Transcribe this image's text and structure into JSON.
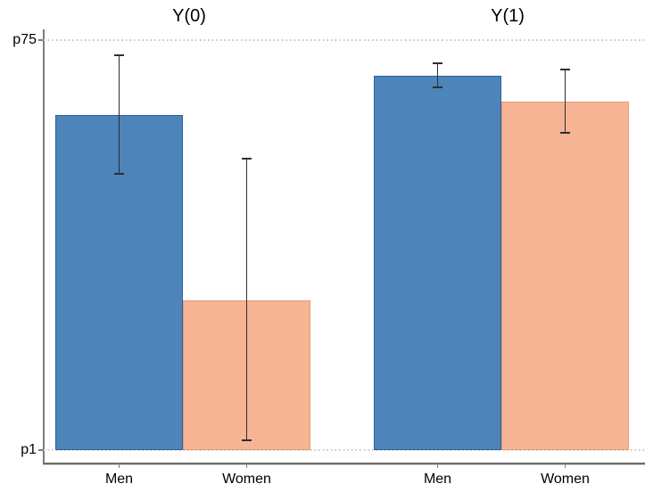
{
  "chart": {
    "background": "#ffffff",
    "axis_color": "#7d7d7d",
    "gridline_color": "#c6c6c6",
    "errorbar_color": "#2e2e2e",
    "text_color": "#000000",
    "men_bar_color": "#4d84ba",
    "men_bar_border": "#2f6096",
    "women_bar_color": "#f6b494",
    "women_bar_border": "#e29a79"
  },
  "chart_data": {
    "type": "bar",
    "title": "",
    "layout_note": "two side-by-side panels sharing one y scale; dotted horizontal gridlines at p1 and p75; error bars (confidence intervals) on each bar; no legend",
    "y_axis": {
      "top_label": "p75",
      "bottom_label": "p1",
      "range": [
        0,
        1
      ],
      "units": "fraction of the p1-to-p75 span (0 = p1 gridline, 1 = p75 gridline)",
      "gridlines": [
        0,
        1
      ],
      "grid_style": "dotted"
    },
    "panels": [
      {
        "title": "Y(0)",
        "bars": [
          {
            "label": "Men",
            "value": 0.817,
            "ci": [
              0.674,
              0.963
            ],
            "color": "#4d84ba",
            "border_color": "#2f6096"
          },
          {
            "label": "Women",
            "value": 0.365,
            "ci": [
              0.024,
              0.711
            ],
            "color": "#f6b494",
            "border_color": "#e29a79"
          }
        ]
      },
      {
        "title": "Y(1)",
        "bars": [
          {
            "label": "Men",
            "value": 0.913,
            "ci": [
              0.885,
              0.943
            ],
            "color": "#4d84ba",
            "border_color": "#2f6096"
          },
          {
            "label": "Women",
            "value": 0.85,
            "ci": [
              0.774,
              0.928
            ],
            "color": "#f6b494",
            "border_color": "#e29a79"
          }
        ]
      }
    ]
  }
}
